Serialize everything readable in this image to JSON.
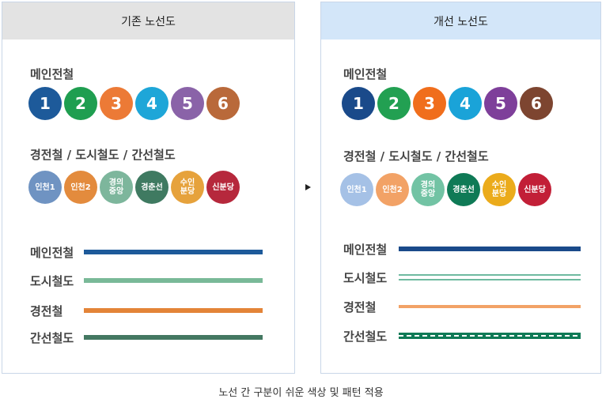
{
  "left_panel": {
    "header": "기존 노선도",
    "metro_title": "메인전철",
    "metro_lines": [
      {
        "label": "1",
        "color": "#1d5a9a"
      },
      {
        "label": "2",
        "color": "#1f9e50"
      },
      {
        "label": "3",
        "color": "#ec7a36"
      },
      {
        "label": "4",
        "color": "#1ea6d8"
      },
      {
        "label": "5",
        "color": "#8a63a8"
      },
      {
        "label": "6",
        "color": "#b9693a"
      }
    ],
    "other_title": "경전철 / 도시철도 / 간선철도",
    "other_lines": [
      {
        "label": "인천1",
        "color": "#6f93c2"
      },
      {
        "label": "인천2",
        "color": "#e38b3d"
      },
      {
        "label": "경의\n중앙",
        "color": "#7db69c"
      },
      {
        "label": "경춘선",
        "color": "#3f7a61"
      },
      {
        "label": "수인\n분당",
        "color": "#e6a23c"
      },
      {
        "label": "신분당",
        "color": "#b6283c"
      }
    ],
    "legend": [
      {
        "label": "메인전철",
        "color": "#1d5a9a",
        "style": "solid"
      },
      {
        "label": "도시철도",
        "color": "#79b998",
        "style": "solid"
      },
      {
        "label": "경전철",
        "color": "#e38438",
        "style": "solid"
      },
      {
        "label": "간선철도",
        "color": "#447862",
        "style": "solid"
      }
    ]
  },
  "right_panel": {
    "header": "개선 노선도",
    "metro_title": "메인전철",
    "metro_lines": [
      {
        "label": "1",
        "color": "#1a4a8a"
      },
      {
        "label": "2",
        "color": "#22a052"
      },
      {
        "label": "3",
        "color": "#f06e1c"
      },
      {
        "label": "4",
        "color": "#1aa3d8"
      },
      {
        "label": "5",
        "color": "#7e3f9a"
      },
      {
        "label": "6",
        "color": "#7d4530"
      }
    ],
    "other_title": "경전철 / 도시철도 / 간선철도",
    "other_lines": [
      {
        "label": "인천1",
        "color": "#a5c1e6"
      },
      {
        "label": "인천2",
        "color": "#f2a266"
      },
      {
        "label": "경의\n중앙",
        "color": "#72c3a4"
      },
      {
        "label": "경춘선",
        "color": "#0f7a56"
      },
      {
        "label": "수인\n분당",
        "color": "#ebab1b"
      },
      {
        "label": "신분당",
        "color": "#c21f37"
      }
    ],
    "legend": [
      {
        "label": "메인전철",
        "color": "#1a4a8a",
        "style": "solid"
      },
      {
        "label": "도시철도",
        "color": "#6fbaa0",
        "style": "double"
      },
      {
        "label": "경전철",
        "color": "#f2a266",
        "style": "thin"
      },
      {
        "label": "간선철도",
        "color": "#0f7a56",
        "style": "dashed"
      }
    ]
  },
  "caption": "노선 간 구분이 쉬운 색상 및 패턴 적용"
}
